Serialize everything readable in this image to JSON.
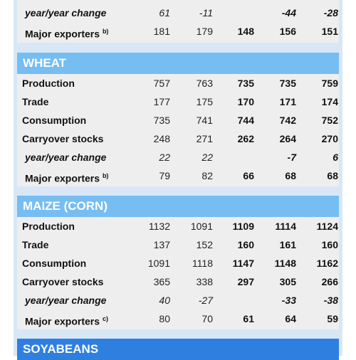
{
  "top": {
    "rows": [
      {
        "label": "year/year change",
        "sup": "",
        "italic": true,
        "values": [
          "61",
          "-11",
          "",
          "-44",
          "-28"
        ]
      },
      {
        "label": "Major exporters",
        "sup": "b)",
        "italic": false,
        "values": [
          "181",
          "179",
          "148",
          "156",
          "151"
        ]
      }
    ]
  },
  "wheat": {
    "title": "WHEAT",
    "rows": [
      {
        "label": "Production",
        "sup": "",
        "italic": false,
        "values": [
          "757",
          "763",
          "735",
          "735",
          "759"
        ]
      },
      {
        "label": "Trade",
        "sup": "",
        "italic": false,
        "values": [
          "177",
          "175",
          "170",
          "171",
          "174"
        ]
      },
      {
        "label": "Consumption",
        "sup": "",
        "italic": false,
        "values": [
          "735",
          "741",
          "744",
          "742",
          "752"
        ]
      },
      {
        "label": "Carryover stocks",
        "sup": "",
        "italic": false,
        "values": [
          "248",
          "271",
          "262",
          "264",
          "270"
        ]
      },
      {
        "label": "year/year change",
        "sup": "",
        "italic": true,
        "values": [
          "22",
          "22",
          "",
          "-7",
          "6"
        ]
      },
      {
        "label": "Major exporters",
        "sup": "b)",
        "italic": false,
        "values": [
          "79",
          "82",
          "66",
          "68",
          "68"
        ]
      }
    ]
  },
  "maize": {
    "title": "MAIZE (CORN)",
    "rows": [
      {
        "label": "Production",
        "sup": "",
        "italic": false,
        "values": [
          "1132",
          "1091",
          "1109",
          "1114",
          "1124"
        ]
      },
      {
        "label": "Trade",
        "sup": "",
        "italic": false,
        "values": [
          "137",
          "152",
          "160",
          "161",
          "160"
        ]
      },
      {
        "label": "Consumption",
        "sup": "",
        "italic": false,
        "values": [
          "1091",
          "1118",
          "1147",
          "1148",
          "1162"
        ]
      },
      {
        "label": "Carryover stocks",
        "sup": "",
        "italic": false,
        "values": [
          "365",
          "338",
          "297",
          "305",
          "266"
        ]
      },
      {
        "label": "year/year change",
        "sup": "",
        "italic": true,
        "values": [
          "40",
          "-27",
          "",
          "-33",
          "-38"
        ]
      },
      {
        "label": "Major exporters",
        "sup": "c)",
        "italic": false,
        "values": [
          "80",
          "70",
          "61",
          "64",
          "59"
        ]
      }
    ]
  },
  "soyabeans": {
    "title": "SOYABEANS"
  }
}
